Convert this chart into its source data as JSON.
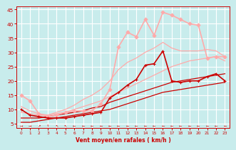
{
  "background_color": "#c8ecec",
  "grid_color": "#ffffff",
  "xlabel": "Vent moyen/en rafales ( km/h )",
  "xlabel_color": "#cc0000",
  "tick_color": "#cc0000",
  "xlim": [
    -0.5,
    23.5
  ],
  "ylim": [
    3.5,
    46
  ],
  "yticks": [
    5,
    10,
    15,
    20,
    25,
    30,
    35,
    40,
    45
  ],
  "xticks": [
    0,
    1,
    2,
    3,
    4,
    5,
    6,
    7,
    8,
    9,
    10,
    11,
    12,
    13,
    14,
    15,
    16,
    17,
    18,
    19,
    20,
    21,
    22,
    23
  ],
  "lines": [
    {
      "comment": "dark red with square markers - mid range line",
      "x": [
        0,
        1,
        2,
        3,
        4,
        5,
        6,
        7,
        8,
        9,
        10,
        11,
        12,
        13,
        14,
        15,
        16,
        17,
        18,
        19,
        20,
        21,
        22,
        23
      ],
      "y": [
        10.0,
        8.0,
        7.5,
        7.0,
        7.0,
        7.0,
        7.5,
        8.0,
        8.5,
        9.0,
        14.0,
        16.0,
        18.5,
        20.5,
        25.5,
        26.0,
        30.5,
        20.0,
        19.5,
        20.0,
        20.0,
        21.5,
        22.5,
        20.0
      ],
      "color": "#cc0000",
      "lw": 1.2,
      "marker": "+",
      "markersize": 3.5,
      "zorder": 5
    },
    {
      "comment": "light pink with diamond markers - highest/most variable line",
      "x": [
        0,
        1,
        2,
        3,
        4,
        5,
        6,
        7,
        8,
        9,
        10,
        11,
        12,
        13,
        14,
        15,
        16,
        17,
        18,
        19,
        20,
        21,
        22,
        23
      ],
      "y": [
        15.0,
        13.0,
        8.5,
        7.5,
        8.0,
        9.0,
        9.5,
        9.5,
        9.5,
        12.0,
        17.0,
        32.0,
        37.0,
        35.5,
        41.5,
        36.0,
        44.0,
        43.0,
        41.5,
        40.0,
        39.5,
        28.0,
        28.5,
        28.5
      ],
      "color": "#ffaaaa",
      "lw": 1.2,
      "marker": "D",
      "markersize": 2.5,
      "zorder": 4
    },
    {
      "comment": "dark red nearly straight line - lower bound",
      "x": [
        0,
        1,
        2,
        3,
        4,
        5,
        6,
        7,
        8,
        9,
        10,
        11,
        12,
        13,
        14,
        15,
        16,
        17,
        18,
        19,
        20,
        21,
        22,
        23
      ],
      "y": [
        5.5,
        5.5,
        6.0,
        6.5,
        7.0,
        7.5,
        8.0,
        8.5,
        9.0,
        9.5,
        10.0,
        11.0,
        12.0,
        13.0,
        14.0,
        15.0,
        16.0,
        16.5,
        17.0,
        17.5,
        18.0,
        18.5,
        19.0,
        19.5
      ],
      "color": "#cc0000",
      "lw": 0.9,
      "marker": null,
      "markersize": 0,
      "zorder": 3
    },
    {
      "comment": "dark red straight - second lower line",
      "x": [
        0,
        1,
        2,
        3,
        4,
        5,
        6,
        7,
        8,
        9,
        10,
        11,
        12,
        13,
        14,
        15,
        16,
        17,
        18,
        19,
        20,
        21,
        22,
        23
      ],
      "y": [
        7.0,
        7.0,
        7.0,
        7.5,
        8.0,
        8.5,
        9.0,
        9.5,
        10.5,
        11.0,
        12.5,
        13.5,
        14.5,
        15.5,
        16.5,
        17.5,
        18.5,
        19.5,
        20.0,
        20.5,
        21.0,
        21.5,
        22.0,
        22.5
      ],
      "color": "#cc0000",
      "lw": 0.9,
      "marker": null,
      "markersize": 0,
      "zorder": 3
    },
    {
      "comment": "light pink nearly straight - medium slope",
      "x": [
        0,
        1,
        2,
        3,
        4,
        5,
        6,
        7,
        8,
        9,
        10,
        11,
        12,
        13,
        14,
        15,
        16,
        17,
        18,
        19,
        20,
        21,
        22,
        23
      ],
      "y": [
        9.0,
        8.5,
        8.0,
        8.0,
        8.5,
        9.0,
        10.0,
        11.0,
        12.0,
        13.0,
        14.5,
        16.0,
        17.5,
        19.0,
        20.5,
        22.0,
        23.5,
        25.0,
        26.0,
        27.0,
        27.5,
        28.0,
        28.5,
        27.0
      ],
      "color": "#ffaaaa",
      "lw": 0.9,
      "marker": null,
      "markersize": 0,
      "zorder": 3
    },
    {
      "comment": "light pink upper envelope curve",
      "x": [
        0,
        1,
        2,
        3,
        4,
        5,
        6,
        7,
        8,
        9,
        10,
        11,
        12,
        13,
        14,
        15,
        16,
        17,
        18,
        19,
        20,
        21,
        22,
        23
      ],
      "y": [
        11.0,
        9.5,
        8.5,
        8.0,
        9.0,
        10.0,
        11.5,
        13.5,
        15.0,
        17.0,
        20.0,
        24.0,
        26.5,
        28.0,
        30.0,
        31.5,
        33.5,
        31.5,
        30.5,
        30.5,
        30.5,
        31.0,
        30.5,
        28.5
      ],
      "color": "#ffaaaa",
      "lw": 0.9,
      "marker": null,
      "markersize": 0,
      "zorder": 3
    }
  ],
  "arrows": {
    "y": 4.2,
    "symbols": [
      "→",
      "→",
      "↗",
      "↑",
      "↖",
      "↖",
      "←",
      "←",
      "←",
      "←",
      "←",
      "←",
      "←",
      "←",
      "←",
      "←",
      "←",
      "←",
      "←",
      "←",
      "←",
      "←",
      "←",
      "←"
    ]
  }
}
